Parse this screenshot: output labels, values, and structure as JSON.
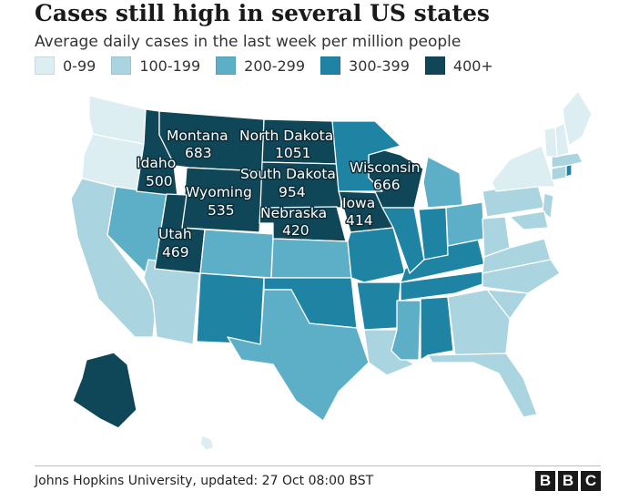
{
  "title": "Cases still high in several US states",
  "subtitle": "Average daily cases in the last week per million people",
  "legend": [
    {
      "label": "0-99",
      "color": "#dceef2"
    },
    {
      "label": "100-199",
      "color": "#a9d4e0"
    },
    {
      "label": "200-299",
      "color": "#5cafc6"
    },
    {
      "label": "300-399",
      "color": "#1f84a3"
    },
    {
      "label": "400+",
      "color": "#0f4759"
    }
  ],
  "map_labels": {
    "montana": {
      "name": "Montana",
      "value": "683"
    },
    "north_dakota": {
      "name": "North Dakota",
      "value": "1051"
    },
    "idaho": {
      "name": "Idaho",
      "value": "500"
    },
    "south_dakota": {
      "name": "South Dakota",
      "value": "954"
    },
    "wyoming": {
      "name": "Wyoming",
      "value": "535"
    },
    "wisconsin": {
      "name": "Wisconsin",
      "value": "666"
    },
    "iowa": {
      "name": "Iowa",
      "value": "414"
    },
    "nebraska": {
      "name": "Nebraska",
      "value": "420"
    },
    "utah": {
      "name": "Utah",
      "value": "469"
    }
  },
  "source": "Johns Hopkins University, updated: 27 Oct 08:00 BST",
  "logo": [
    "B",
    "B",
    "C"
  ]
}
